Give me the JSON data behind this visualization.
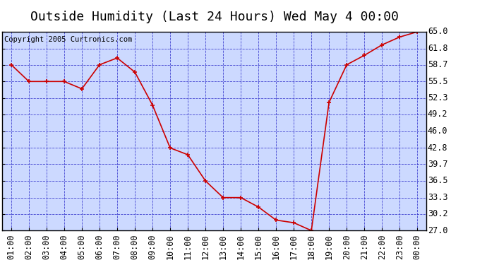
{
  "title": "Outside Humidity (Last 24 Hours) Wed May 4 00:00",
  "copyright": "Copyright 2005 Curtronics.com",
  "x_labels": [
    "01:00",
    "02:00",
    "03:00",
    "04:00",
    "05:00",
    "06:00",
    "07:00",
    "08:00",
    "09:00",
    "10:00",
    "11:00",
    "12:00",
    "13:00",
    "14:00",
    "15:00",
    "16:00",
    "17:00",
    "18:00",
    "19:00",
    "20:00",
    "21:00",
    "22:00",
    "23:00",
    "00:00"
  ],
  "x_values": [
    1,
    2,
    3,
    4,
    5,
    6,
    7,
    8,
    9,
    10,
    11,
    12,
    13,
    14,
    15,
    16,
    17,
    18,
    19,
    20,
    21,
    22,
    23,
    24
  ],
  "y_values": [
    58.7,
    55.5,
    55.5,
    55.5,
    54.1,
    58.7,
    60.0,
    57.3,
    51.0,
    42.8,
    41.5,
    36.5,
    33.3,
    33.3,
    31.5,
    29.0,
    28.5,
    27.0,
    51.5,
    58.7,
    60.5,
    62.5,
    64.0,
    65.0
  ],
  "ylim": [
    27.0,
    65.0
  ],
  "y_ticks": [
    27.0,
    30.2,
    33.3,
    36.5,
    39.7,
    42.8,
    46.0,
    49.2,
    52.3,
    55.5,
    58.7,
    61.8,
    65.0
  ],
  "line_color": "#cc0000",
  "marker_color": "#cc0000",
  "bg_color": "#ccd9ff",
  "grid_color": "#3333cc",
  "title_fontsize": 13,
  "axis_label_fontsize": 8.5,
  "copyright_fontsize": 7.5
}
